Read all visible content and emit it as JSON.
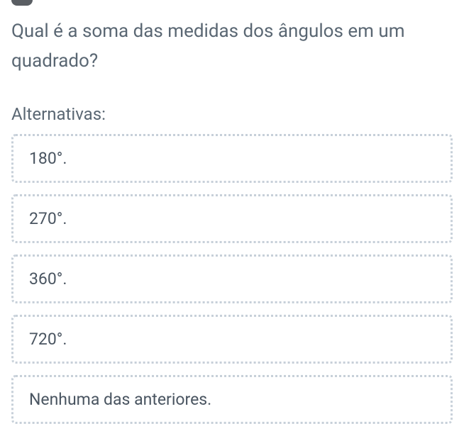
{
  "question": {
    "text": "Qual é a soma das medidas dos ângulos em um quadrado?"
  },
  "alternatives": {
    "label": "Alternativas:",
    "items": [
      {
        "text": "180°."
      },
      {
        "text": "270°."
      },
      {
        "text": "360°."
      },
      {
        "text": "720°."
      },
      {
        "text": "Nenhuma das anteriores."
      }
    ]
  },
  "styling": {
    "background_color": "#ffffff",
    "text_color": "#5a6773",
    "option_text_color": "#4a5561",
    "border_color": "#c7d0d9",
    "border_style": "dotted",
    "border_width": 3,
    "border_radius": 6,
    "question_fontsize": 26,
    "label_fontsize": 24,
    "option_fontsize": 23
  }
}
